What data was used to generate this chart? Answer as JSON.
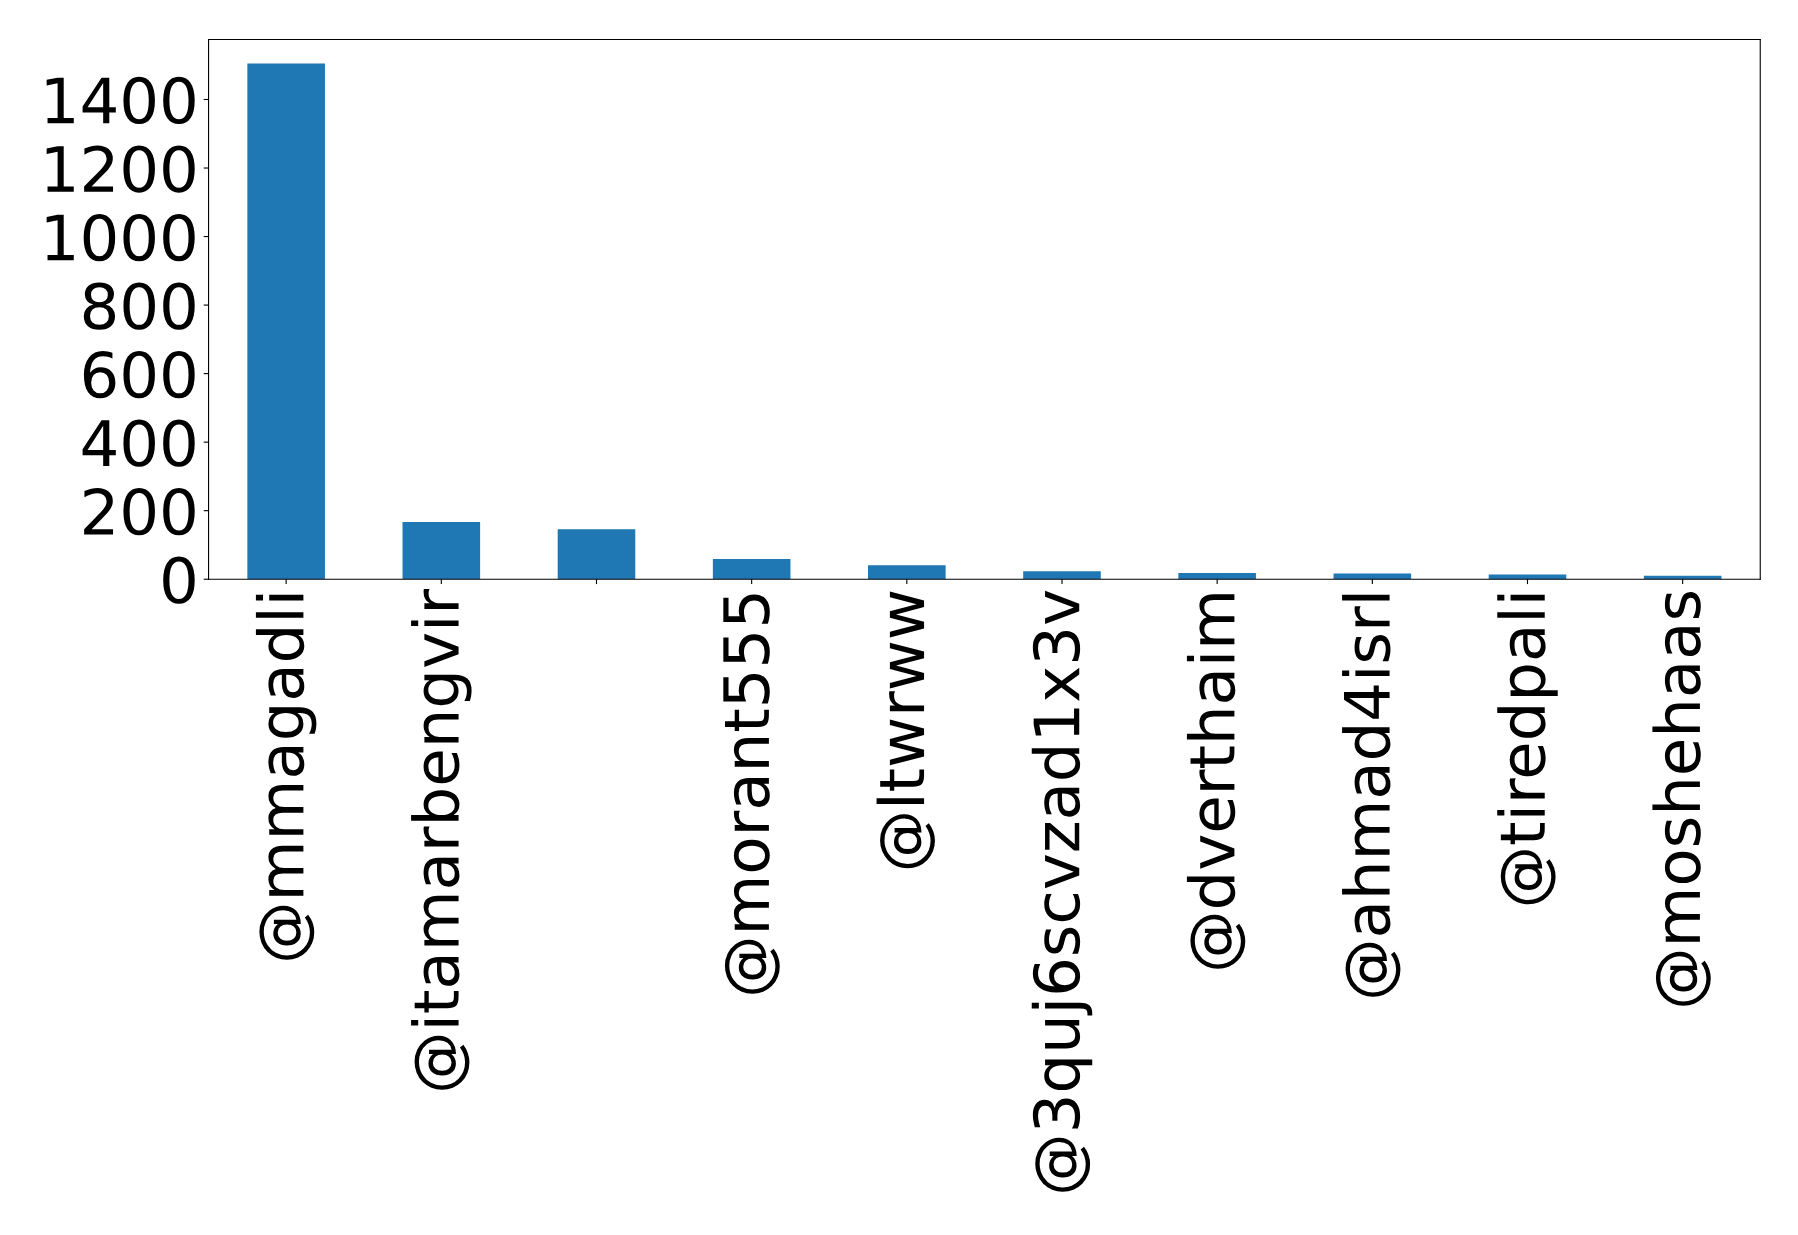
{
  "chart_data": {
    "type": "bar",
    "categories": [
      "@mmagadli",
      "@itamarbengvir",
      null,
      "@morant555",
      "@ltwrww",
      "@3quj6scvzad1x3v",
      "@dverthaim",
      "@ahmad4isrl",
      "@tiredpali",
      "@moshehaas"
    ],
    "values": [
      1505,
      167,
      146,
      59,
      41,
      23,
      18,
      17,
      14,
      10
    ],
    "color": "#1f77b4",
    "ylim": [
      0,
      1575
    ],
    "yticks": [
      0,
      200,
      400,
      600,
      800,
      1000,
      1200,
      1400
    ],
    "grid": false
  }
}
